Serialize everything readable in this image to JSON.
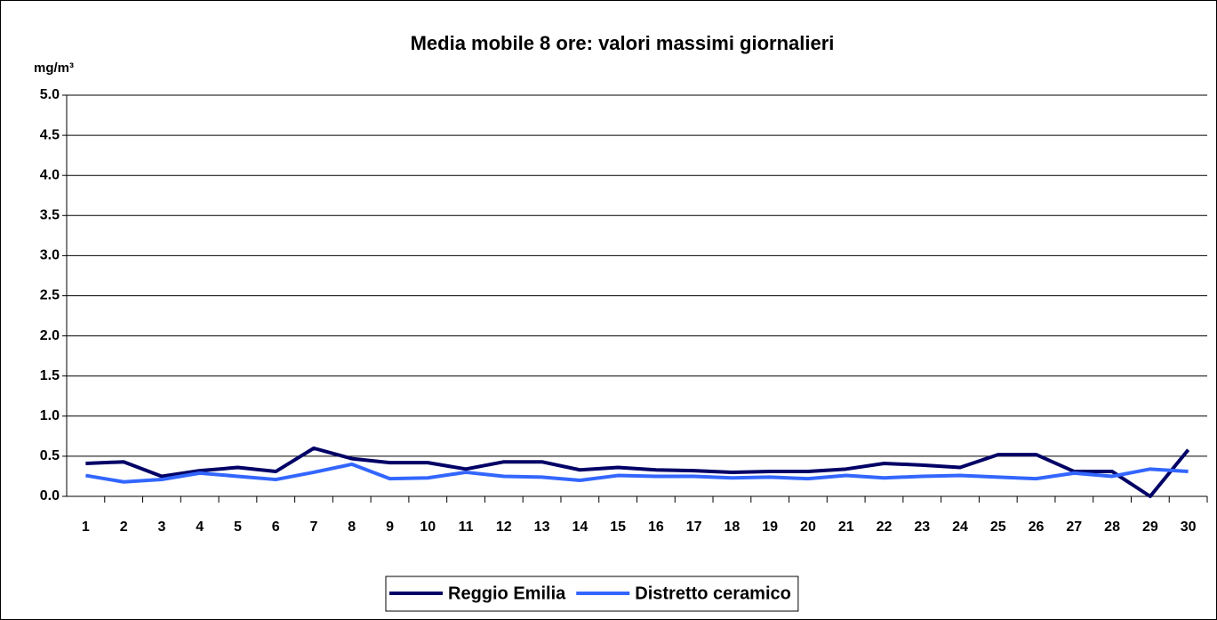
{
  "chart_data": {
    "type": "line",
    "title": "Media mobile 8 ore: valori massimi giornalieri",
    "y_label": "mg/m³",
    "categories": [
      "1",
      "2",
      "3",
      "4",
      "5",
      "6",
      "7",
      "8",
      "9",
      "10",
      "11",
      "12",
      "13",
      "14",
      "15",
      "16",
      "17",
      "18",
      "19",
      "20",
      "21",
      "22",
      "23",
      "24",
      "25",
      "26",
      "27",
      "28",
      "29",
      "30"
    ],
    "series": [
      {
        "name": "Reggio Emilia",
        "color": "#000066",
        "values": [
          0.41,
          0.43,
          0.25,
          0.32,
          0.36,
          0.31,
          0.6,
          0.47,
          0.42,
          0.42,
          0.34,
          0.43,
          0.43,
          0.33,
          0.36,
          0.33,
          0.32,
          0.3,
          0.31,
          0.31,
          0.34,
          0.41,
          0.39,
          0.36,
          0.52,
          0.52,
          0.31,
          0.31,
          0.0,
          0.58
        ]
      },
      {
        "name": "Distretto ceramico",
        "color": "#3366ff",
        "values": [
          0.26,
          0.18,
          0.21,
          0.29,
          0.25,
          0.21,
          0.3,
          0.4,
          0.22,
          0.23,
          0.3,
          0.25,
          0.24,
          0.2,
          0.26,
          0.25,
          0.25,
          0.23,
          0.24,
          0.22,
          0.26,
          0.23,
          0.25,
          0.26,
          0.24,
          0.22,
          0.29,
          0.25,
          0.34,
          0.31
        ]
      }
    ],
    "ylim": [
      0,
      5
    ],
    "yticks": [
      {
        "value": 0,
        "label": "0.0"
      },
      {
        "value": 0.5,
        "label": "0.5"
      },
      {
        "value": 1,
        "label": "1.0"
      },
      {
        "value": 1.5,
        "label": "1.5"
      },
      {
        "value": 2,
        "label": "2.0"
      },
      {
        "value": 2.5,
        "label": "2.5"
      },
      {
        "value": 3,
        "label": "3.0"
      },
      {
        "value": 3.5,
        "label": "3.5"
      },
      {
        "value": 4,
        "label": "4.0"
      },
      {
        "value": 4.5,
        "label": "4.5"
      },
      {
        "value": 5,
        "label": "5.0"
      }
    ],
    "grid": true,
    "legend": "bottom"
  }
}
